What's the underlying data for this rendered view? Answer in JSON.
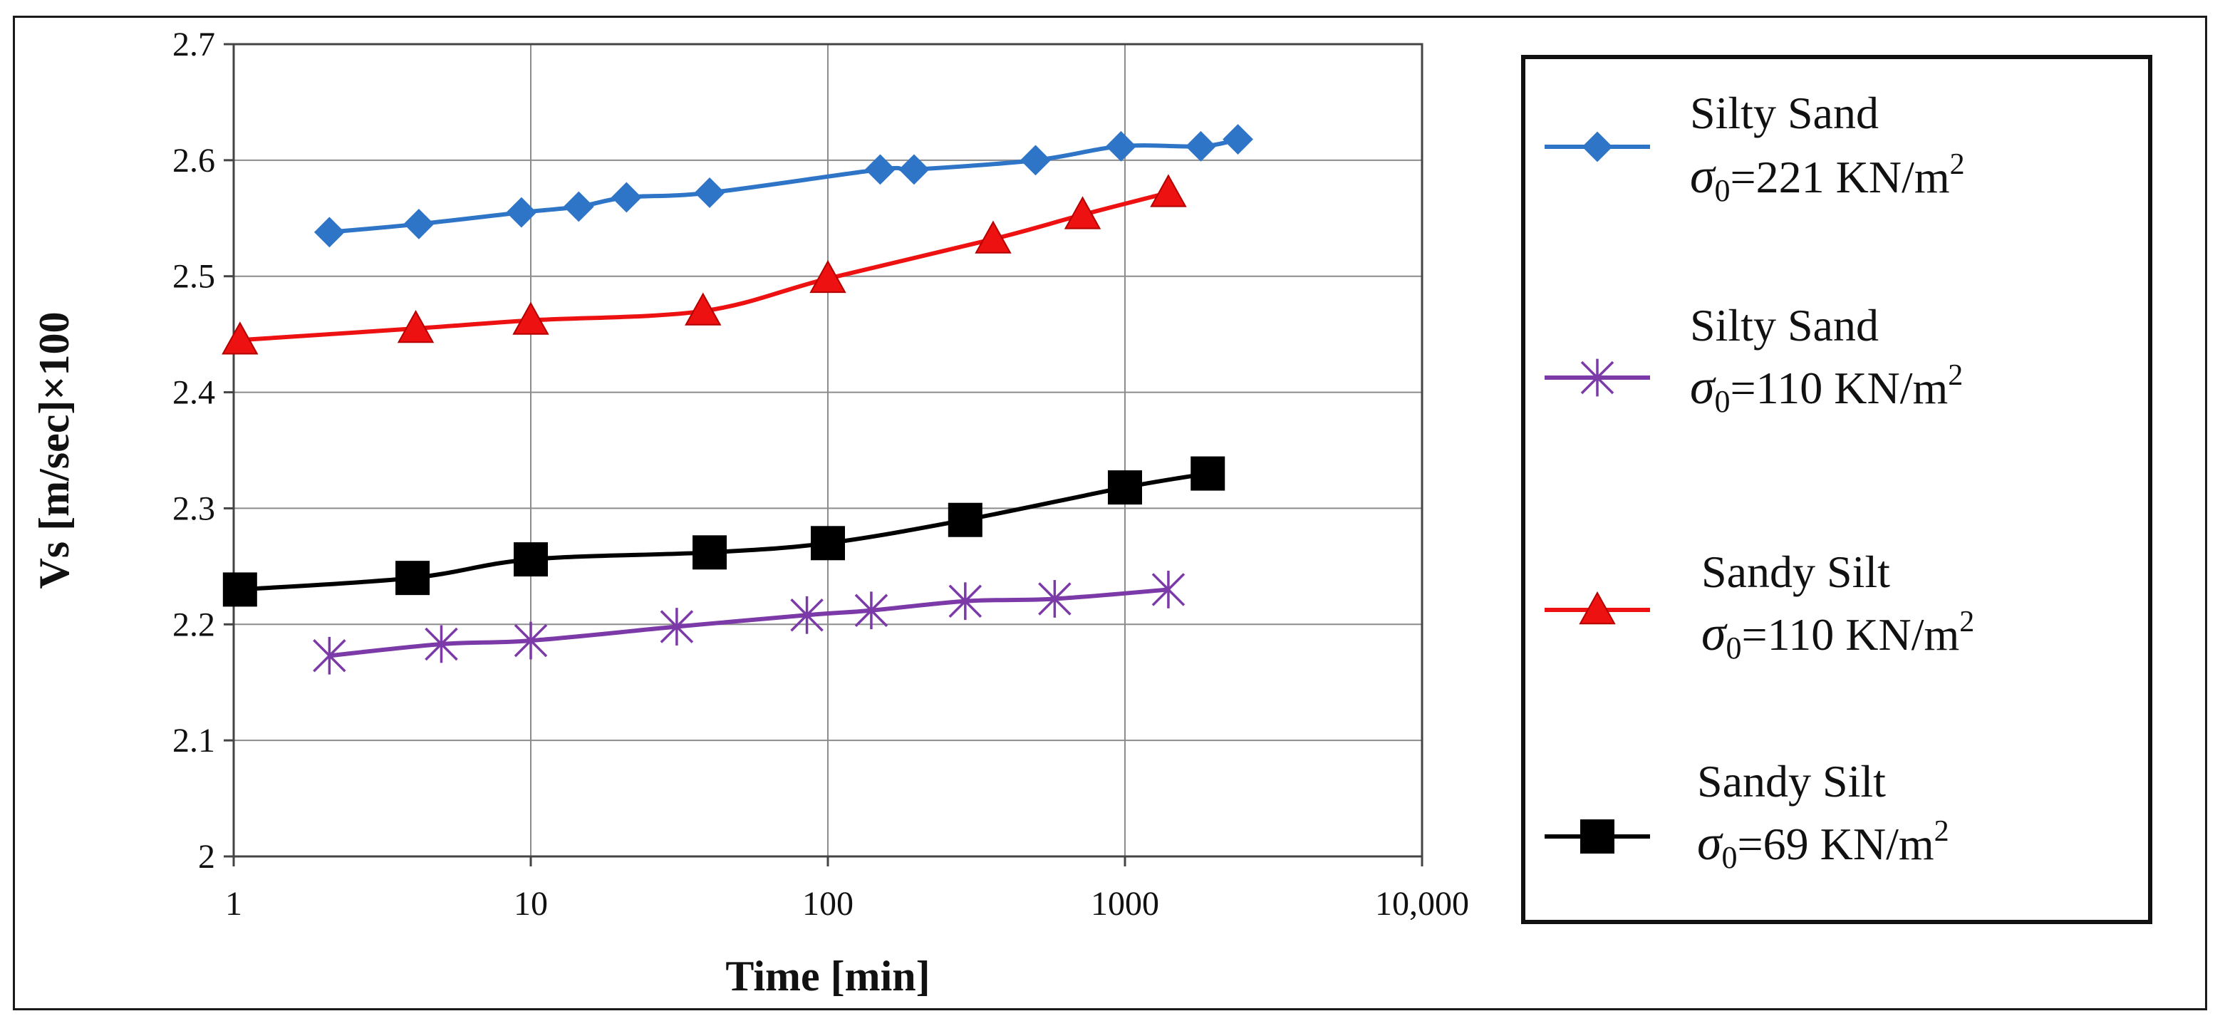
{
  "chart_data": {
    "type": "line",
    "xscale": "log",
    "xlabel": "Time [min]",
    "ylabel": "Vs [m/sec]×100",
    "xlim": [
      1,
      10000
    ],
    "ylim": [
      2.0,
      2.7
    ],
    "xticks": [
      "1",
      "10",
      "100",
      "1000",
      "10,000"
    ],
    "yticks": [
      "2",
      "2.1",
      "2.2",
      "2.3",
      "2.4",
      "2.5",
      "2.6",
      "2.7"
    ],
    "grid": true,
    "legend_position": "right",
    "series": [
      {
        "name": "Silty Sand σ0=221 KN/m2",
        "legend_line1": "Silty Sand",
        "legend_line2": "=221 KN/m",
        "color": "#2e75c8",
        "marker": "diamond",
        "x": [
          2.1,
          4.2,
          9.3,
          14.5,
          21,
          40,
          150,
          195,
          500,
          970,
          1800,
          2400
        ],
        "y": [
          2.538,
          2.545,
          2.555,
          2.56,
          2.568,
          2.572,
          2.592,
          2.592,
          2.6,
          2.612,
          2.612,
          2.618
        ]
      },
      {
        "name": "Silty Sand σ0=110 KN/m2",
        "legend_line1": "Silty Sand",
        "legend_line2": "=110 KN/m",
        "color": "#7b3aa8",
        "marker": "asterisk",
        "x": [
          2.1,
          5,
          10,
          31,
          85,
          140,
          290,
          580,
          1400
        ],
        "y": [
          2.173,
          2.183,
          2.186,
          2.198,
          2.208,
          2.212,
          2.22,
          2.222,
          2.23
        ]
      },
      {
        "name": "Sandy Silt σ0=110 KN/m2",
        "legend_line1": "Sandy Silt",
        "legend_line2": "=110 KN/m",
        "color": "#ee1111",
        "marker": "triangle",
        "x": [
          1.05,
          4.1,
          10,
          38,
          100,
          360,
          720,
          1400
        ],
        "y": [
          2.445,
          2.455,
          2.462,
          2.47,
          2.498,
          2.532,
          2.553,
          2.572
        ]
      },
      {
        "name": "Sandy Silt σ0=69 KN/m2",
        "legend_line1": "Sandy Silt",
        "legend_line2": "=69 KN/m",
        "color": "#000000",
        "marker": "square",
        "x": [
          1.05,
          4,
          10,
          40,
          100,
          290,
          1000,
          1900
        ],
        "y": [
          2.23,
          2.24,
          2.256,
          2.262,
          2.27,
          2.29,
          2.318,
          2.33
        ]
      }
    ],
    "legend_order": [
      0,
      1,
      2,
      3
    ],
    "legend_sigma": "σ",
    "legend_sub": "0",
    "legend_sup": "2"
  }
}
